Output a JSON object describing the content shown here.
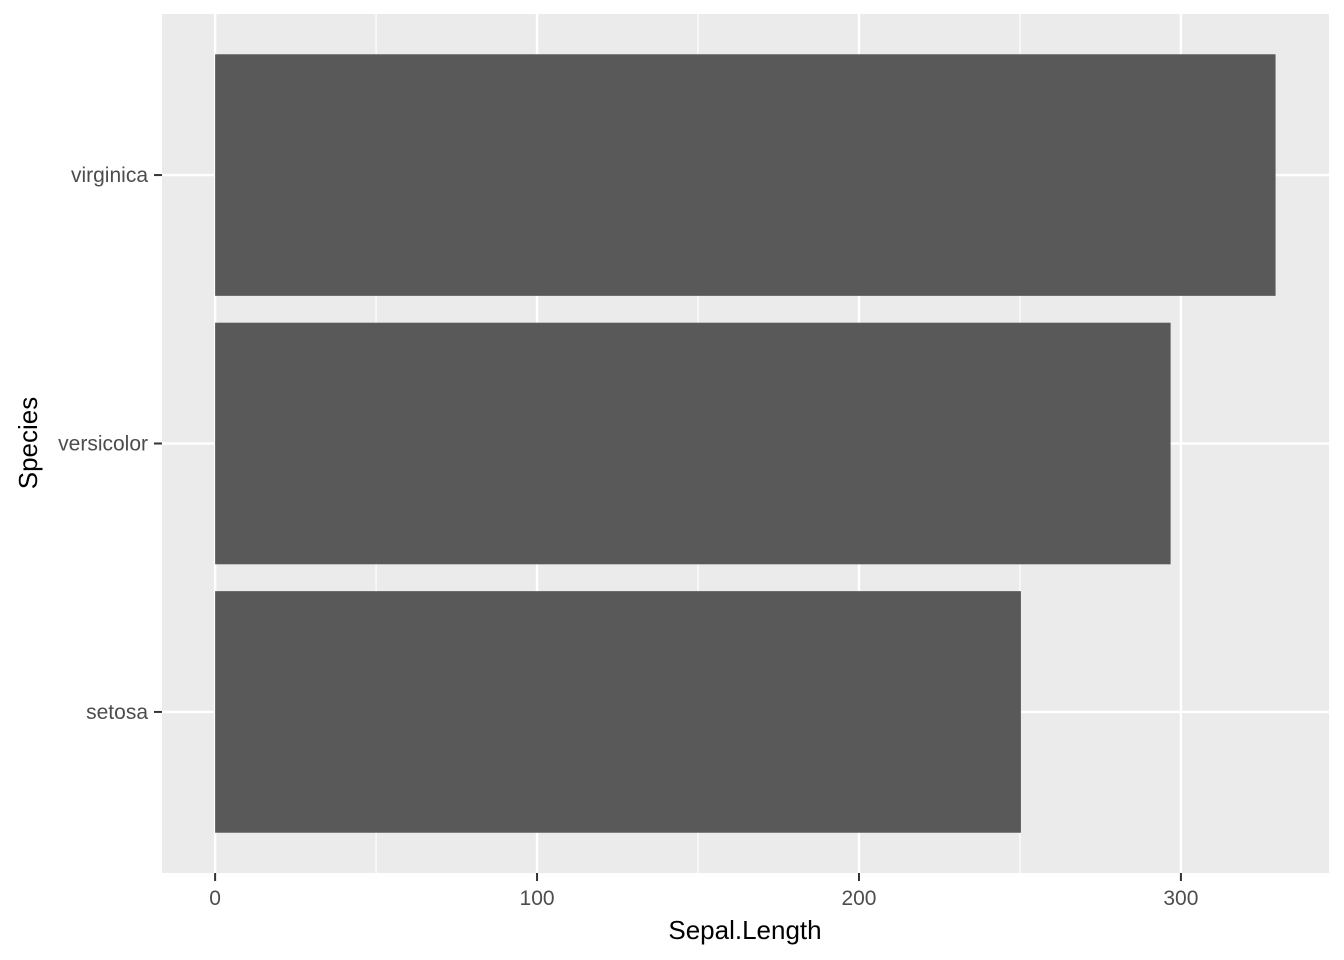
{
  "chart_data": {
    "type": "bar",
    "orientation": "horizontal",
    "categories": [
      "setosa",
      "versicolor",
      "virginica"
    ],
    "values": [
      250.3,
      296.8,
      329.4
    ],
    "xlabel": "Sepal.Length",
    "ylabel": "Species",
    "xlim": [
      -16.5,
      346
    ],
    "xticks": [
      0,
      100,
      200,
      300
    ],
    "grid": true,
    "colors": {
      "panel": "#ebebeb",
      "grid": "#ffffff",
      "bar": "#595959",
      "tick_text": "#4d4d4d",
      "axis_title": "#000000"
    }
  }
}
